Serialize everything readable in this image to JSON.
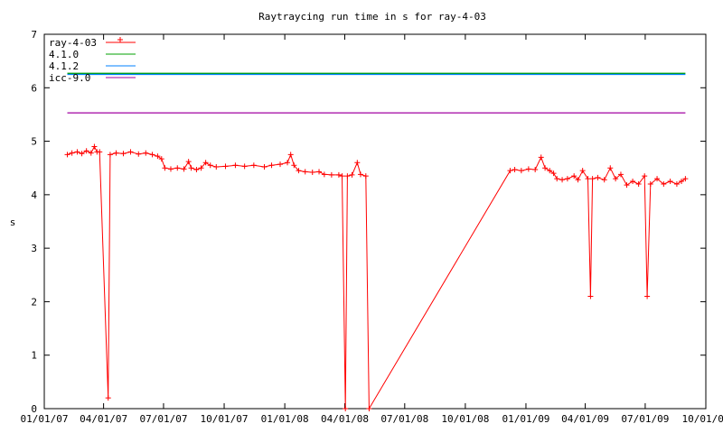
{
  "chart_data": {
    "type": "line",
    "title": "Raytraycing run time in s for ray-4-03",
    "ylabel": "s",
    "xlabel": "",
    "ylim": [
      0,
      7
    ],
    "xlim": [
      "2007-01-01",
      "2009-10-01"
    ],
    "y_ticks": [
      "0",
      "1",
      "2",
      "3",
      "4",
      "5",
      "6",
      "7"
    ],
    "x_ticks": [
      "01/01/07",
      "04/01/07",
      "07/01/07",
      "10/01/07",
      "01/01/08",
      "04/01/08",
      "07/01/08",
      "10/01/08",
      "01/01/09",
      "04/01/09",
      "07/01/09",
      "10/01/09"
    ],
    "legend_position": "top-left",
    "grid": false,
    "series": [
      {
        "name": "ray-4-03",
        "color": "#ff0000",
        "marker": "plus",
        "points": [
          [
            "2007-02-05",
            4.75
          ],
          [
            "2007-02-12",
            4.78
          ],
          [
            "2007-02-20",
            4.8
          ],
          [
            "2007-02-27",
            4.77
          ],
          [
            "2007-03-06",
            4.82
          ],
          [
            "2007-03-13",
            4.78
          ],
          [
            "2007-03-18",
            4.9
          ],
          [
            "2007-03-22",
            4.8
          ],
          [
            "2007-03-26",
            4.8
          ],
          [
            "2007-04-08",
            0.2
          ],
          [
            "2007-04-11",
            4.75
          ],
          [
            "2007-04-20",
            4.78
          ],
          [
            "2007-05-01",
            4.77
          ],
          [
            "2007-05-12",
            4.8
          ],
          [
            "2007-05-24",
            4.76
          ],
          [
            "2007-06-04",
            4.78
          ],
          [
            "2007-06-14",
            4.75
          ],
          [
            "2007-06-22",
            4.72
          ],
          [
            "2007-06-28",
            4.67
          ],
          [
            "2007-07-03",
            4.5
          ],
          [
            "2007-07-12",
            4.48
          ],
          [
            "2007-07-22",
            4.5
          ],
          [
            "2007-08-01",
            4.48
          ],
          [
            "2007-08-08",
            4.62
          ],
          [
            "2007-08-12",
            4.5
          ],
          [
            "2007-08-20",
            4.47
          ],
          [
            "2007-08-27",
            4.5
          ],
          [
            "2007-09-03",
            4.6
          ],
          [
            "2007-09-10",
            4.55
          ],
          [
            "2007-09-19",
            4.52
          ],
          [
            "2007-10-03",
            4.53
          ],
          [
            "2007-10-18",
            4.55
          ],
          [
            "2007-11-01",
            4.53
          ],
          [
            "2007-11-15",
            4.55
          ],
          [
            "2007-12-01",
            4.52
          ],
          [
            "2007-12-12",
            4.55
          ],
          [
            "2007-12-25",
            4.57
          ],
          [
            "2008-01-05",
            4.6
          ],
          [
            "2008-01-10",
            4.75
          ],
          [
            "2008-01-15",
            4.55
          ],
          [
            "2008-01-22",
            4.45
          ],
          [
            "2008-02-01",
            4.43
          ],
          [
            "2008-02-12",
            4.42
          ],
          [
            "2008-02-22",
            4.43
          ],
          [
            "2008-03-01",
            4.38
          ],
          [
            "2008-03-12",
            4.37
          ],
          [
            "2008-03-23",
            4.37
          ],
          [
            "2008-03-28",
            4.35
          ],
          [
            "2008-04-02",
            0.0
          ],
          [
            "2008-04-05",
            4.35
          ],
          [
            "2008-04-12",
            4.37
          ],
          [
            "2008-04-20",
            4.6
          ],
          [
            "2008-04-25",
            4.38
          ],
          [
            "2008-05-03",
            4.35
          ],
          [
            "2008-05-08",
            0.0
          ],
          [
            "2008-12-08",
            4.45
          ],
          [
            "2008-12-15",
            4.47
          ],
          [
            "2008-12-25",
            4.45
          ],
          [
            "2009-01-05",
            4.48
          ],
          [
            "2009-01-15",
            4.47
          ],
          [
            "2009-01-24",
            4.7
          ],
          [
            "2009-01-30",
            4.5
          ],
          [
            "2009-02-06",
            4.45
          ],
          [
            "2009-02-12",
            4.4
          ],
          [
            "2009-02-17",
            4.3
          ],
          [
            "2009-02-25",
            4.28
          ],
          [
            "2009-03-05",
            4.3
          ],
          [
            "2009-03-15",
            4.35
          ],
          [
            "2009-03-21",
            4.28
          ],
          [
            "2009-03-28",
            4.45
          ],
          [
            "2009-04-05",
            4.3
          ],
          [
            "2009-04-09",
            2.1
          ],
          [
            "2009-04-12",
            4.3
          ],
          [
            "2009-04-20",
            4.32
          ],
          [
            "2009-04-30",
            4.28
          ],
          [
            "2009-05-09",
            4.5
          ],
          [
            "2009-05-17",
            4.3
          ],
          [
            "2009-05-25",
            4.38
          ],
          [
            "2009-06-03",
            4.18
          ],
          [
            "2009-06-12",
            4.25
          ],
          [
            "2009-06-21",
            4.2
          ],
          [
            "2009-06-30",
            4.35
          ],
          [
            "2009-07-04",
            2.1
          ],
          [
            "2009-07-09",
            4.2
          ],
          [
            "2009-07-19",
            4.3
          ],
          [
            "2009-07-29",
            4.2
          ],
          [
            "2009-08-08",
            4.25
          ],
          [
            "2009-08-18",
            4.2
          ],
          [
            "2009-08-25",
            4.25
          ],
          [
            "2009-08-31",
            4.3
          ]
        ]
      },
      {
        "name": "4.1.0",
        "color": "#00a000",
        "marker": "none",
        "points": [
          [
            "2007-02-05",
            6.27
          ],
          [
            "2009-08-31",
            6.27
          ]
        ]
      },
      {
        "name": "4.1.2",
        "color": "#0080ff",
        "marker": "none",
        "points": [
          [
            "2007-02-05",
            6.25
          ],
          [
            "2009-08-31",
            6.25
          ]
        ]
      },
      {
        "name": "icc-9.0",
        "color": "#a000a0",
        "marker": "none",
        "points": [
          [
            "2007-02-05",
            5.53
          ],
          [
            "2009-08-31",
            5.53
          ]
        ]
      }
    ]
  }
}
